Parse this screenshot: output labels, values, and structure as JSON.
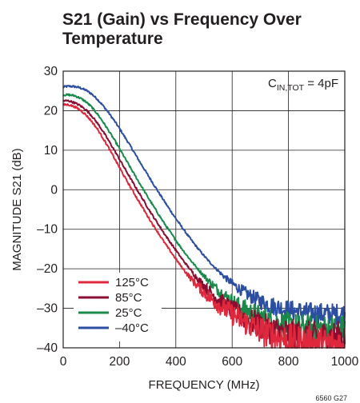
{
  "chart_data": {
    "type": "line",
    "title_lines": [
      "S21 (Gain) vs Frequency Over",
      "Temperature"
    ],
    "xlabel": "FREQUENCY (MHz)",
    "ylabel": "MAGNITUDE S21 (dB)",
    "xlim": [
      0,
      1000
    ],
    "ylim": [
      -40,
      30
    ],
    "x_ticks": [
      0,
      200,
      400,
      600,
      800,
      1000
    ],
    "x_tick_labels": [
      "0",
      "200",
      "400",
      "600",
      "800",
      "1000"
    ],
    "y_ticks": [
      30,
      20,
      10,
      0,
      -10,
      -20,
      -30,
      -40
    ],
    "y_tick_labels": [
      "30",
      "20",
      "10",
      "0",
      "–10",
      "–20",
      "–30",
      "–40"
    ],
    "grid": true,
    "legend_position": "bottom-left",
    "annotation": {
      "main": "C",
      "subscript": "IN,TOT",
      "suffix": " = 4pF"
    },
    "figure_id": "6560 G27",
    "series": [
      {
        "name": "125°C",
        "color": "#e0283c",
        "x": [
          0,
          20,
          40,
          60,
          80,
          100,
          120,
          140,
          160,
          180,
          200,
          220,
          240,
          260,
          280,
          300,
          320,
          340,
          360,
          380,
          400,
          420,
          440,
          460,
          480,
          500,
          520,
          540,
          560,
          580,
          600,
          620,
          640,
          660,
          680,
          700,
          720,
          740,
          760,
          780,
          800,
          820,
          840,
          860,
          880,
          900,
          920,
          940,
          960,
          980,
          1000
        ],
        "y": [
          21.5,
          21.5,
          21,
          20.2,
          19,
          17.4,
          15.5,
          13.2,
          10.8,
          8.2,
          5.6,
          3,
          0.5,
          -1.9,
          -4.3,
          -6.7,
          -9,
          -11.2,
          -13.4,
          -15.5,
          -17.5,
          -19.5,
          -21.3,
          -23,
          -24.5,
          -26,
          -27.3,
          -28.4,
          -29.5,
          -30.5,
          -31.5,
          -32.4,
          -33.3,
          -34.1,
          -34.9,
          -35.5,
          -36.2,
          -36.8,
          -37.3,
          -37.7,
          -38.1,
          -38.4,
          -38.6,
          -38.8,
          -38.9,
          -39,
          -39.1,
          -39.1,
          -39.2,
          -39.2,
          -39.2
        ]
      },
      {
        "name": "85°C",
        "color": "#8b0d30",
        "x": [
          0,
          20,
          40,
          60,
          80,
          100,
          120,
          140,
          160,
          180,
          200,
          220,
          240,
          260,
          280,
          300,
          320,
          340,
          360,
          380,
          400,
          420,
          440,
          460,
          480,
          500,
          520,
          540,
          560,
          580,
          600,
          620,
          640,
          660,
          680,
          700,
          720,
          740,
          760,
          780,
          800,
          820,
          840,
          860,
          880,
          900,
          920,
          940,
          960,
          980,
          1000
        ],
        "y": [
          22.5,
          22.5,
          22,
          21.3,
          20.3,
          18.8,
          17,
          14.9,
          12.6,
          10.2,
          7.7,
          5.2,
          2.7,
          0.3,
          -2.1,
          -4.5,
          -6.8,
          -9,
          -11.2,
          -13.3,
          -15.3,
          -17.3,
          -19.2,
          -21,
          -22.7,
          -24.3,
          -25.8,
          -27.1,
          -28.3,
          -29.4,
          -30.5,
          -31.4,
          -32.3,
          -33.1,
          -33.8,
          -34.4,
          -35,
          -35.5,
          -35.9,
          -36.3,
          -36.6,
          -36.8,
          -37,
          -37.1,
          -37.2,
          -37.3,
          -37.3,
          -37.3,
          -37.3,
          -37.3,
          -37.3
        ]
      },
      {
        "name": "25°C",
        "color": "#1a8a4a",
        "x": [
          0,
          20,
          40,
          60,
          80,
          100,
          120,
          140,
          160,
          180,
          200,
          220,
          240,
          260,
          280,
          300,
          320,
          340,
          360,
          380,
          400,
          420,
          440,
          460,
          480,
          500,
          520,
          540,
          560,
          580,
          600,
          620,
          640,
          660,
          680,
          700,
          720,
          740,
          760,
          780,
          800,
          820,
          840,
          860,
          880,
          900,
          920,
          940,
          960,
          980,
          1000
        ],
        "y": [
          24,
          24,
          23.8,
          23.2,
          22.3,
          21,
          19.3,
          17.3,
          15.1,
          12.8,
          10.4,
          7.9,
          5.4,
          3,
          0.6,
          -1.8,
          -4.1,
          -6.4,
          -8.6,
          -10.7,
          -12.8,
          -14.8,
          -16.7,
          -18.5,
          -20.2,
          -21.8,
          -23.3,
          -24.7,
          -26,
          -27.2,
          -28.3,
          -29.3,
          -30.1,
          -30.9,
          -31.6,
          -32.2,
          -32.8,
          -33.3,
          -33.7,
          -34.1,
          -34.4,
          -34.7,
          -34.9,
          -35,
          -35.1,
          -35.2,
          -35.2,
          -35.2,
          -35.3,
          -35.3,
          -35.3
        ]
      },
      {
        "name": "–40°C",
        "color": "#2b4ea2",
        "x": [
          0,
          20,
          40,
          60,
          80,
          100,
          120,
          140,
          160,
          180,
          200,
          220,
          240,
          260,
          280,
          300,
          320,
          340,
          360,
          380,
          400,
          420,
          440,
          460,
          480,
          500,
          520,
          540,
          560,
          580,
          600,
          620,
          640,
          660,
          680,
          700,
          720,
          740,
          760,
          780,
          800,
          820,
          840,
          860,
          880,
          900,
          920,
          940,
          960,
          980,
          1000
        ],
        "y": [
          26,
          26.2,
          26.1,
          25.8,
          25.2,
          24.3,
          23,
          21.4,
          19.6,
          17.6,
          15.5,
          13.2,
          10.9,
          8.5,
          6.1,
          3.8,
          1.5,
          -0.8,
          -3,
          -5.2,
          -7.3,
          -9.3,
          -11.3,
          -13.2,
          -15,
          -16.7,
          -18.3,
          -19.8,
          -21.2,
          -22.5,
          -23.7,
          -24.8,
          -25.8,
          -26.7,
          -27.5,
          -28.2,
          -28.8,
          -29.3,
          -29.7,
          -30.1,
          -30.4,
          -30.7,
          -30.9,
          -31.1,
          -31.2,
          -31.3,
          -31.4,
          -31.5,
          -31.5,
          -31.5,
          -31.5
        ]
      }
    ]
  }
}
